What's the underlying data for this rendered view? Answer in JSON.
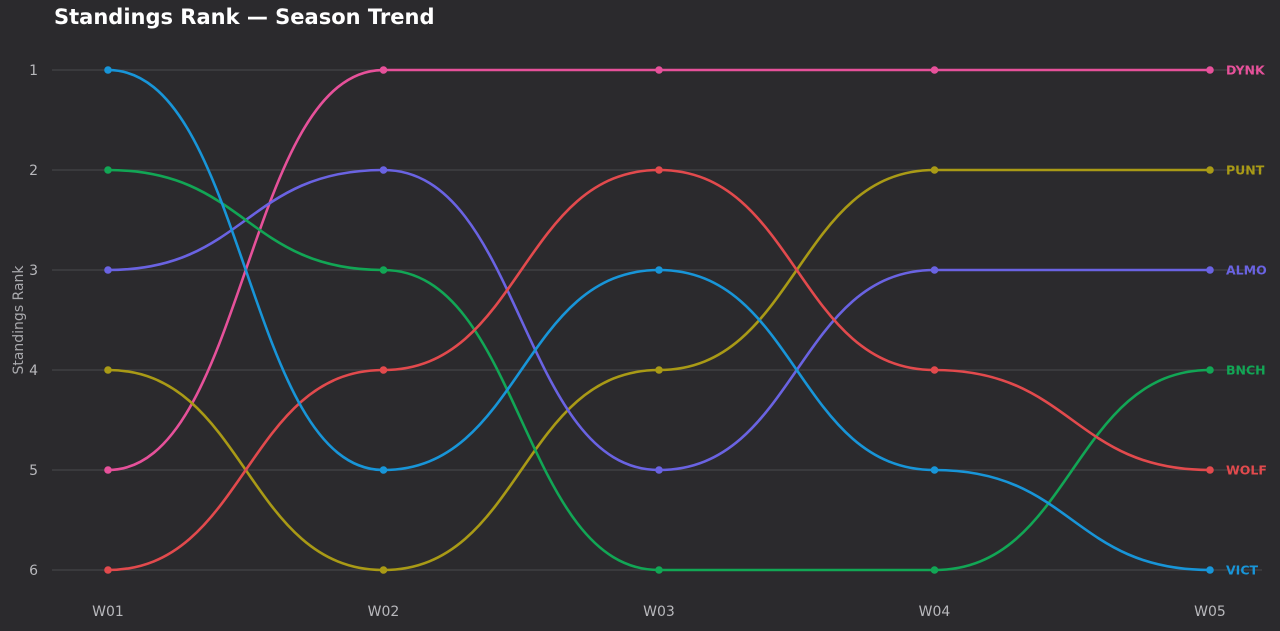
{
  "chart_data": {
    "type": "line",
    "title": "Standings Rank — Season Trend",
    "ylabel": "Standings Rank",
    "xlabel": "",
    "categories": [
      "W01",
      "W02",
      "W03",
      "W04",
      "W05"
    ],
    "y_ticks": [
      "1",
      "2",
      "3",
      "4",
      "5",
      "6"
    ],
    "ylim": [
      1,
      6
    ],
    "y_inverted": true,
    "grid": "horizontal",
    "legend": "end-of-line labels",
    "series": [
      {
        "name": "DYNK",
        "color": "#e6519a",
        "values": [
          5,
          1,
          1,
          1,
          1
        ]
      },
      {
        "name": "PUNT",
        "color": "#a99a16",
        "values": [
          4,
          6,
          4,
          2,
          2
        ]
      },
      {
        "name": "ALMO",
        "color": "#6a63e2",
        "values": [
          3,
          2,
          5,
          3,
          3
        ]
      },
      {
        "name": "BNCH",
        "color": "#12a655",
        "values": [
          2,
          3,
          6,
          6,
          4
        ]
      },
      {
        "name": "WOLF",
        "color": "#e24a4d",
        "values": [
          6,
          4,
          2,
          4,
          5
        ]
      },
      {
        "name": "VICT",
        "color": "#1895d8",
        "values": [
          1,
          5,
          3,
          5,
          6
        ]
      }
    ]
  }
}
